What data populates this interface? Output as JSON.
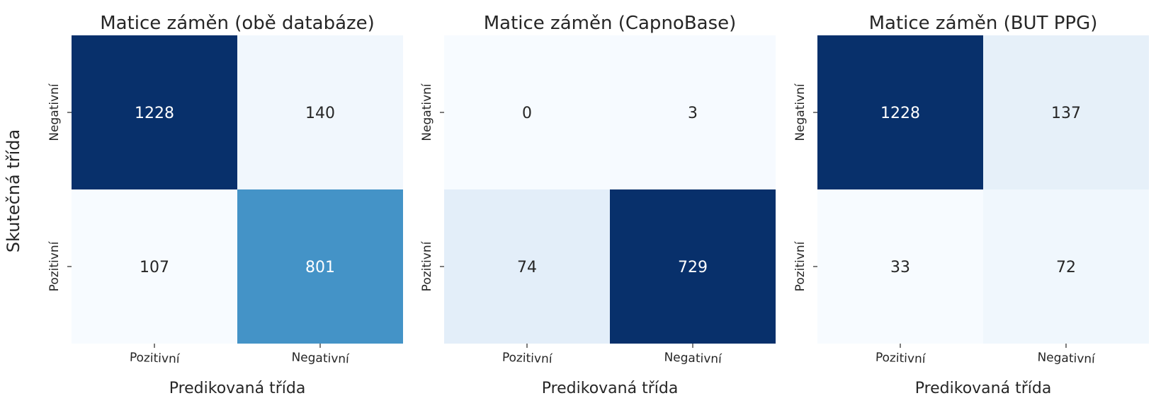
{
  "figure": {
    "shared_ylabel": "Skutečná třída"
  },
  "chart_data": [
    {
      "type": "heatmap",
      "title": "Matice záměn (obě databáze)",
      "xlabel": "Predikovaná třída",
      "ylabel": "Skutečná třída",
      "x_categories": [
        "Pozitivní",
        "Negativní"
      ],
      "y_categories": [
        "Negativní",
        "Pozitivní"
      ],
      "values": [
        [
          1228,
          140
        ],
        [
          107,
          801
        ]
      ],
      "colormap": "Blues",
      "colorbar": false
    },
    {
      "type": "heatmap",
      "title": "Matice záměn (CapnoBase)",
      "xlabel": "Predikovaná třída",
      "ylabel": "",
      "x_categories": [
        "Pozitivní",
        "Negativní"
      ],
      "y_categories": [
        "Negativní",
        "Pozitivní"
      ],
      "values": [
        [
          0,
          3
        ],
        [
          74,
          729
        ]
      ],
      "colormap": "Blues",
      "colorbar": false
    },
    {
      "type": "heatmap",
      "title": "Matice záměn (BUT PPG)",
      "xlabel": "Predikovaná třída",
      "ylabel": "",
      "x_categories": [
        "Pozitivní",
        "Negativní"
      ],
      "y_categories": [
        "Negativní",
        "Pozitivní"
      ],
      "values": [
        [
          1228,
          137
        ],
        [
          33,
          72
        ]
      ],
      "colormap": "Blues",
      "colorbar": false
    }
  ]
}
